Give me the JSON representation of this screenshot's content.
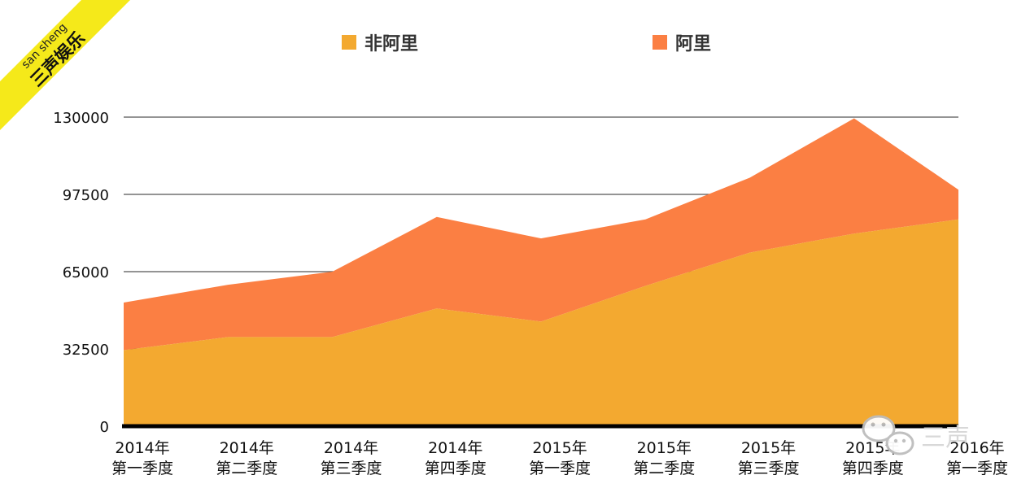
{
  "brand": {
    "name_en": "san sheng",
    "name_cn": "三声娱乐",
    "banner_color": "#f5e91a"
  },
  "watermark": {
    "text": "三声",
    "icon": "wechat-icon"
  },
  "colors": {
    "non_ali": "#f3a930",
    "ali": "#fb7f43",
    "grid": "#555555",
    "baseline": "#000000"
  },
  "chart_data": {
    "type": "area",
    "stacked": true,
    "title": "",
    "xlabel": "",
    "ylabel": "",
    "ylim": [
      0,
      130000
    ],
    "yticks": [
      0,
      32500,
      65000,
      97500,
      130000
    ],
    "grid": true,
    "legend_position": "top",
    "categories": [
      [
        "2014年",
        "第一季度"
      ],
      [
        "2014年",
        "第二季度"
      ],
      [
        "2014年",
        "第三季度"
      ],
      [
        "2014年",
        "第四季度"
      ],
      [
        "2015年",
        "第一季度"
      ],
      [
        "2015年",
        "第二季度"
      ],
      [
        "2015年",
        "第三季度"
      ],
      [
        "2015年",
        "第四季度"
      ],
      [
        "2016年",
        "第一季度"
      ]
    ],
    "series": [
      {
        "name": "非阿里",
        "values": [
          32000,
          37500,
          37500,
          49500,
          44000,
          59000,
          73000,
          81000,
          87000
        ]
      },
      {
        "name": "阿里",
        "values": [
          20000,
          22000,
          27500,
          38500,
          35000,
          28000,
          31500,
          48500,
          12500
        ]
      }
    ]
  }
}
